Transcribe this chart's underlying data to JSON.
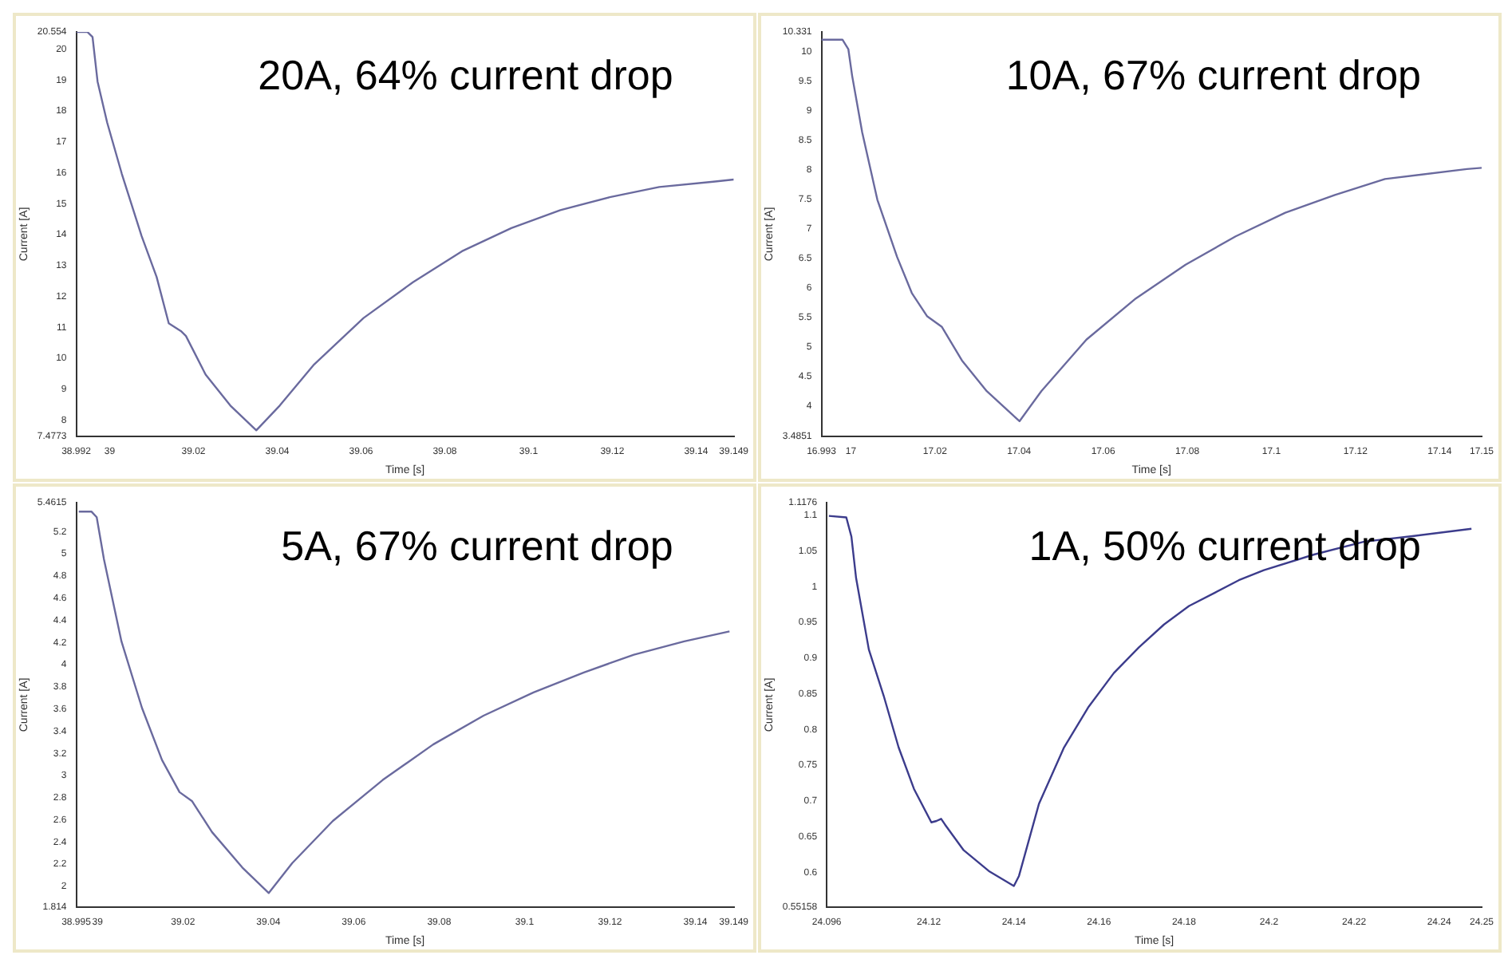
{
  "chart_data": [
    {
      "type": "line",
      "xlabel": "Time [s]",
      "ylabel": "Current [A]",
      "annotations": [
        "20A, 64% current drop"
      ],
      "legend": false,
      "grid": false,
      "xlim": [
        38.992,
        39.149
      ],
      "xticks": [
        38.992,
        39,
        39.02,
        39.04,
        39.06,
        39.08,
        39.1,
        39.12,
        39.14,
        39.149
      ],
      "ylim": [
        7.4773,
        20.554
      ],
      "yticks": [
        7.4773,
        8,
        9,
        10,
        11,
        12,
        13,
        14,
        15,
        16,
        17,
        18,
        19,
        20,
        20.554
      ],
      "series": [
        {
          "color": "#6a6a9e",
          "x": [
            38.992,
            38.9947,
            38.9959,
            38.9971,
            38.9994,
            39.0029,
            39.0076,
            39.0112,
            39.0141,
            39.017,
            39.0182,
            39.0229,
            39.0288,
            39.035,
            39.0406,
            39.0488,
            39.0606,
            39.0724,
            39.0841,
            39.0959,
            39.1076,
            39.1194,
            39.1312,
            39.1441,
            39.149
          ],
          "values": [
            20.55,
            20.55,
            20.39,
            18.95,
            17.62,
            15.96,
            13.96,
            12.63,
            11.13,
            10.88,
            10.72,
            9.47,
            8.47,
            7.67,
            8.47,
            9.8,
            11.3,
            12.46,
            13.46,
            14.21,
            14.79,
            15.21,
            15.54,
            15.71,
            15.78
          ]
        }
      ]
    },
    {
      "type": "line",
      "xlabel": "Time [s]",
      "ylabel": "Current [A]",
      "annotations": [
        "10A, 67% current drop"
      ],
      "legend": false,
      "grid": false,
      "xlim": [
        16.993,
        17.15
      ],
      "xticks": [
        16.993,
        17,
        17.02,
        17.04,
        17.06,
        17.08,
        17.1,
        17.12,
        17.14,
        17.15
      ],
      "ylim": [
        3.4851,
        10.331
      ],
      "yticks": [
        3.4851,
        4,
        4.5,
        5,
        5.5,
        6,
        6.5,
        7,
        7.5,
        8,
        8.5,
        9,
        9.5,
        10,
        10.331
      ],
      "series": [
        {
          "color": "#6a6a9e",
          "x": [
            16.993,
            16.998,
            16.9994,
            17.0003,
            17.0027,
            17.0063,
            17.011,
            17.0145,
            17.0181,
            17.0216,
            17.0264,
            17.0323,
            17.0401,
            17.0453,
            17.056,
            17.0678,
            17.0796,
            17.0915,
            17.1033,
            17.1151,
            17.127,
            17.1465,
            17.15
          ],
          "values": [
            10.2,
            10.2,
            10.04,
            9.59,
            8.63,
            7.49,
            6.52,
            5.91,
            5.52,
            5.34,
            4.77,
            4.25,
            3.74,
            4.25,
            5.12,
            5.82,
            6.39,
            6.87,
            7.27,
            7.57,
            7.84,
            8.01,
            8.03
          ]
        }
      ]
    },
    {
      "type": "line",
      "xlabel": "Time [s]",
      "ylabel": "Current [A]",
      "annotations": [
        "5A, 67% current drop"
      ],
      "legend": false,
      "grid": false,
      "xlim": [
        38.995,
        39.149
      ],
      "xticks": [
        38.995,
        39,
        39.02,
        39.04,
        39.06,
        39.08,
        39.1,
        39.12,
        39.14,
        39.149
      ],
      "ylim": [
        1.814,
        5.4615
      ],
      "yticks": [
        1.814,
        2,
        2.2,
        2.4,
        2.6,
        2.8,
        3,
        3.2,
        3.4,
        3.6,
        3.8,
        4,
        4.2,
        4.4,
        4.6,
        4.8,
        5,
        5.2,
        5.4615
      ],
      "series": [
        {
          "color": "#6a6a9e",
          "x": [
            38.9956,
            38.9986,
            38.9998,
            39.0015,
            39.0056,
            39.0104,
            39.0151,
            39.0192,
            39.0221,
            39.0268,
            39.0339,
            39.0401,
            39.0456,
            39.0551,
            39.0668,
            39.0786,
            39.0904,
            39.1021,
            39.1139,
            39.1256,
            39.1374,
            39.148
          ],
          "values": [
            5.38,
            5.38,
            5.33,
            4.95,
            4.21,
            3.61,
            3.14,
            2.85,
            2.77,
            2.49,
            2.17,
            1.94,
            2.21,
            2.59,
            2.96,
            3.28,
            3.54,
            3.75,
            3.93,
            4.09,
            4.21,
            4.3
          ]
        }
      ]
    },
    {
      "type": "line",
      "xlabel": "Time [s]",
      "ylabel": "Current [A]",
      "annotations": [
        "1A, 50% current drop"
      ],
      "legend": false,
      "grid": false,
      "xlim": [
        24.096,
        24.25
      ],
      "xticks": [
        24.096,
        24.12,
        24.14,
        24.16,
        24.18,
        24.2,
        24.22,
        24.24,
        24.25
      ],
      "ylim": [
        0.55158,
        1.1176
      ],
      "yticks": [
        0.55158,
        0.6,
        0.65,
        0.7,
        0.75,
        0.8,
        0.85,
        0.9,
        0.95,
        1,
        1.05,
        1.1,
        1.1176
      ],
      "series": [
        {
          "color": "#3c3c8c",
          "x": [
            24.0965,
            24.1006,
            24.1018,
            24.1029,
            24.1059,
            24.1094,
            24.1129,
            24.1165,
            24.1206,
            24.1218,
            24.1229,
            24.1238,
            24.1282,
            24.1341,
            24.14,
            24.1412,
            24.1459,
            24.1518,
            24.1576,
            24.1635,
            24.1694,
            24.1753,
            24.1812,
            24.1871,
            24.1929,
            24.1988,
            24.2106,
            24.2224,
            24.2341,
            24.2476
          ],
          "values": [
            1.099,
            1.097,
            1.07,
            1.012,
            0.912,
            0.847,
            0.775,
            0.717,
            0.67,
            0.672,
            0.675,
            0.667,
            0.631,
            0.602,
            0.581,
            0.595,
            0.696,
            0.775,
            0.832,
            0.879,
            0.915,
            0.947,
            0.973,
            0.991,
            1.009,
            1.023,
            1.045,
            1.063,
            1.071,
            1.081
          ]
        }
      ]
    }
  ]
}
